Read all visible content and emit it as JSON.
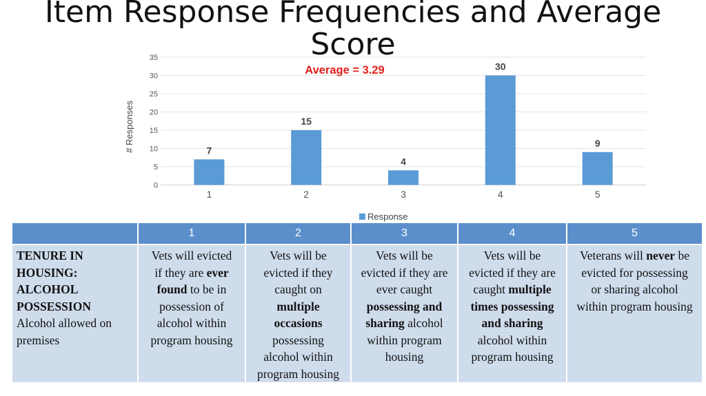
{
  "title": "Item Response Frequencies and Average Score",
  "chart_data": {
    "type": "bar",
    "categories": [
      "1",
      "2",
      "3",
      "4",
      "5"
    ],
    "values": [
      7,
      15,
      4,
      30,
      9
    ],
    "data_labels": [
      "7",
      "15",
      "4",
      "30",
      "9"
    ],
    "ylabel": "# Responses",
    "ylim": [
      0,
      35
    ],
    "yticks": [
      0,
      5,
      10,
      15,
      20,
      25,
      30,
      35
    ],
    "gridlines": true,
    "legend": {
      "position": "bottom",
      "entries": [
        "Response"
      ]
    },
    "annotation": "Average = 3.29",
    "bar_color": "#5b9bd5",
    "annotation_color": "#e0211c"
  },
  "table": {
    "headers": [
      "",
      "1",
      "2",
      "3",
      "4",
      "5"
    ],
    "row_header": {
      "title_lines": [
        "TENURE IN",
        "HOUSING:",
        "ALCOHOL",
        "POSSESSION"
      ],
      "desc_lines": [
        "Alcohol allowed on",
        "premises"
      ]
    },
    "cells": [
      [
        [
          {
            "t": "Vets will evicted"
          }
        ],
        [
          {
            "t": "if they are "
          },
          {
            "t": "ever",
            "b": true
          }
        ],
        [
          {
            "t": "found",
            "b": true
          },
          {
            "t": " to be in"
          }
        ],
        [
          {
            "t": "possession of"
          }
        ],
        [
          {
            "t": "alcohol within"
          }
        ],
        [
          {
            "t": "program housing"
          }
        ]
      ],
      [
        [
          {
            "t": "Vets will be"
          }
        ],
        [
          {
            "t": "evicted if they"
          }
        ],
        [
          {
            "t": "caught on"
          }
        ],
        [
          {
            "t": "multiple",
            "b": true
          }
        ],
        [
          {
            "t": "occasions",
            "b": true
          }
        ],
        [
          {
            "t": "possessing"
          }
        ],
        [
          {
            "t": "alcohol within"
          }
        ],
        [
          {
            "t": "program housing"
          }
        ]
      ],
      [
        [
          {
            "t": "Vets will be"
          }
        ],
        [
          {
            "t": "evicted if they are"
          }
        ],
        [
          {
            "t": "ever caught"
          }
        ],
        [
          {
            "t": "possessing and",
            "b": true
          }
        ],
        [
          {
            "t": "sharing",
            "b": true
          },
          {
            "t": " alcohol"
          }
        ],
        [
          {
            "t": "within program"
          }
        ],
        [
          {
            "t": "housing"
          }
        ]
      ],
      [
        [
          {
            "t": "Vets will be"
          }
        ],
        [
          {
            "t": "evicted if they are"
          }
        ],
        [
          {
            "t": "caught "
          },
          {
            "t": "multiple",
            "b": true
          }
        ],
        [
          {
            "t": "times possessing",
            "b": true
          }
        ],
        [
          {
            "t": "and sharing",
            "b": true
          }
        ],
        [
          {
            "t": "alcohol within"
          }
        ],
        [
          {
            "t": "program housing"
          }
        ]
      ],
      [
        [
          {
            "t": "Veterans will "
          },
          {
            "t": "never",
            "b": true
          },
          {
            "t": " be"
          }
        ],
        [
          {
            "t": "evicted for possessing"
          }
        ],
        [
          {
            "t": "or sharing alcohol"
          }
        ],
        [
          {
            "t": "within program housing"
          }
        ]
      ]
    ]
  }
}
